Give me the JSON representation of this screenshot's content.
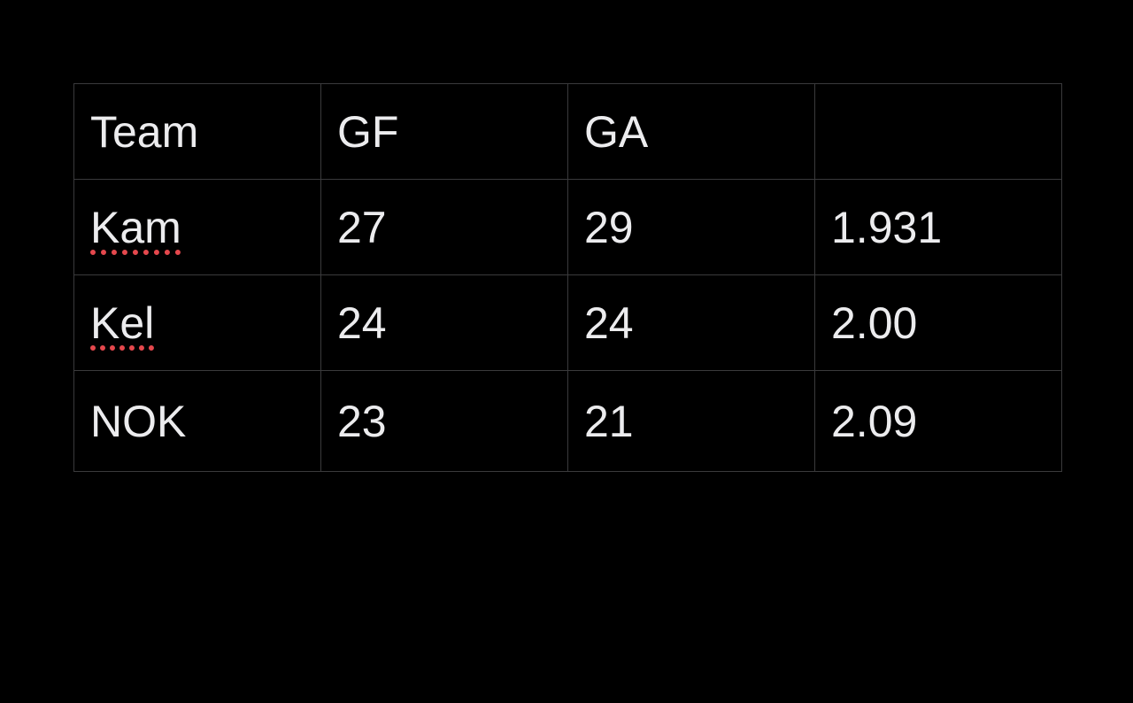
{
  "table": {
    "headers": [
      "Team",
      "GF",
      "GA",
      ""
    ],
    "rows": [
      {
        "team": "Kam",
        "gf": "27",
        "ga": "29",
        "ratio": "1.931",
        "misspelled": true
      },
      {
        "team": "Kel",
        "gf": "24",
        "ga": "24",
        "ratio": "2.00",
        "misspelled": true
      },
      {
        "team": "NOK",
        "gf": "23",
        "ga": "21",
        "ratio": "2.09",
        "misspelled": false
      }
    ]
  },
  "colors": {
    "background": "#000000",
    "text": "#ececee",
    "grid": "#3a3a3c",
    "spellcheck": "#e5484d"
  }
}
